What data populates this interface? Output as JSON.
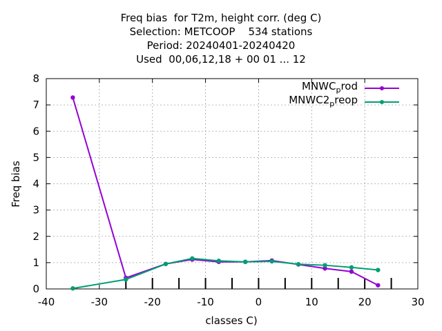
{
  "chart_data": {
    "type": "line",
    "title_lines": [
      "Freq bias  for T2m, height corr. (deg C)",
      "Selection: METCOOP    534 stations",
      "Period: 20240401-20240420",
      "Used  00,06,12,18 + 00 01 ... 12"
    ],
    "xlabel": "classes C)",
    "ylabel": "Freq bias",
    "xlim": [
      -40,
      30
    ],
    "ylim": [
      0,
      8
    ],
    "xticks": [
      "-40",
      "-30",
      "-20",
      "-10",
      "0",
      "10",
      "20",
      "30"
    ],
    "yticks": [
      "0",
      "1",
      "2",
      "3",
      "4",
      "5",
      "6",
      "7",
      "8"
    ],
    "class_tick_marks": [
      -25,
      -20,
      -15,
      -10,
      -5,
      0,
      5,
      10,
      15,
      20,
      25
    ],
    "grid": true,
    "legend_position": "top-right",
    "series": [
      {
        "name": "MNWC_prod",
        "legend_main": "MNWC",
        "legend_sub": "p",
        "legend_rest": "rod",
        "color": "#9400d3",
        "x": [
          -35,
          -25,
          -17.5,
          -12.5,
          -7.5,
          -2.5,
          2.5,
          7.5,
          12.5,
          17.5,
          22.5
        ],
        "y": [
          7.28,
          0.42,
          0.95,
          1.12,
          1.03,
          1.03,
          1.08,
          0.93,
          0.78,
          0.66,
          0.14
        ]
      },
      {
        "name": "MNWC2_preop",
        "legend_main": "MNWC2",
        "legend_sub": "p",
        "legend_rest": "reop",
        "color": "#009e73",
        "x": [
          -35,
          -25,
          -17.5,
          -12.5,
          -7.5,
          -2.5,
          2.5,
          7.5,
          12.5,
          17.5,
          22.5
        ],
        "y": [
          0.02,
          0.36,
          0.95,
          1.16,
          1.07,
          1.03,
          1.05,
          0.94,
          0.9,
          0.82,
          0.72
        ]
      }
    ]
  }
}
